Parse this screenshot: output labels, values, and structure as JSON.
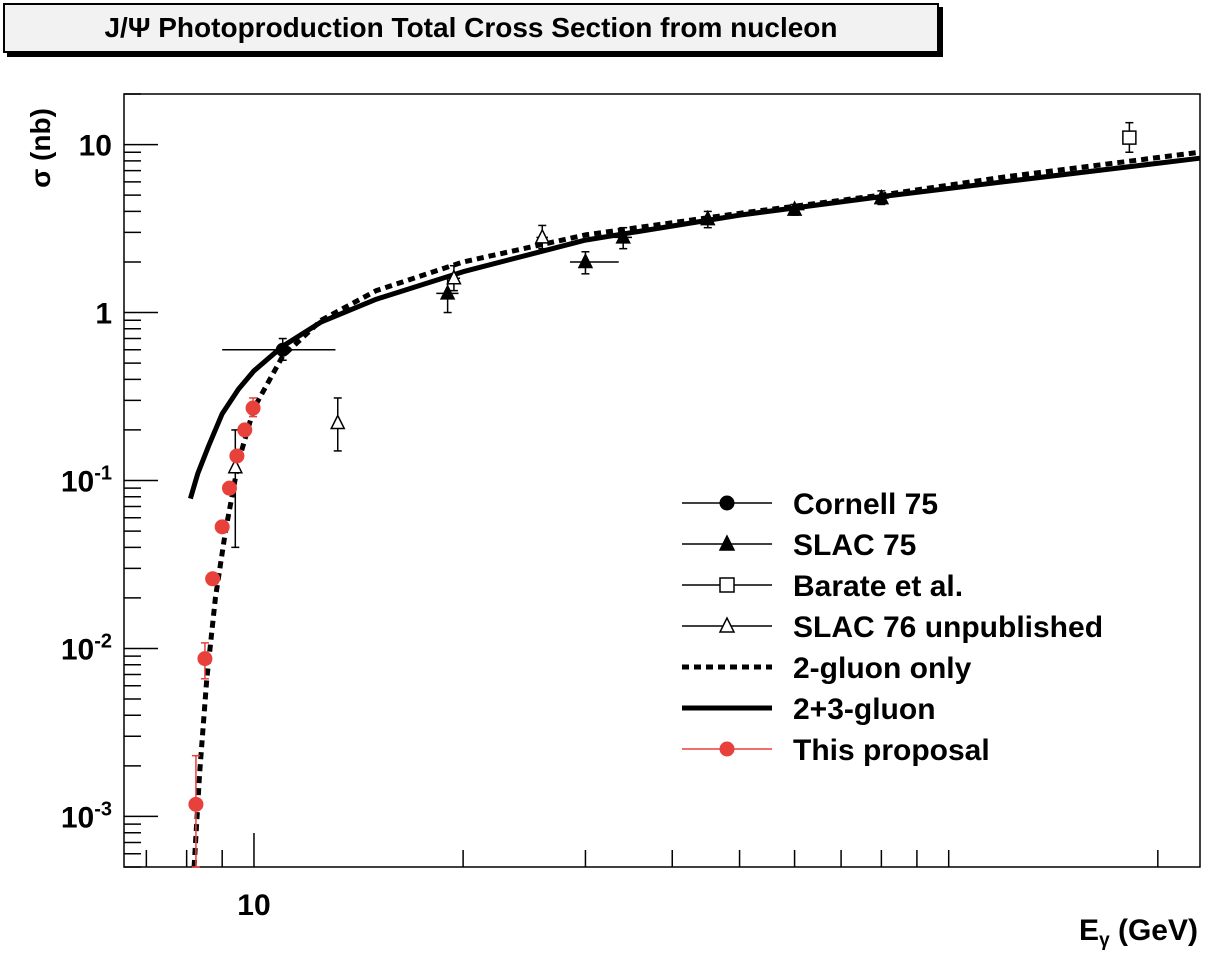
{
  "chart_data": {
    "type": "scatter",
    "title": "J/Ψ Photoproduction Total Cross Section from nucleon",
    "xlabel": "E",
    "xlabel_sub": "γ",
    "xlabel_unit": " (GeV)",
    "ylabel": "σ (nb)",
    "x_scale": "log",
    "y_scale": "log",
    "xlim": [
      6.5,
      230
    ],
    "ylim": [
      0.0005,
      20
    ],
    "x_major_ticks": [
      {
        "value": 10,
        "label": "10"
      }
    ],
    "x_minor_ticks": [
      7,
      8,
      9,
      20,
      30,
      40,
      50,
      60,
      70,
      80,
      90,
      100,
      200
    ],
    "y_major_ticks": [
      {
        "value": 10,
        "label": "10"
      },
      {
        "value": 1,
        "label": "1"
      },
      {
        "value": 0.1,
        "base": "10",
        "exp": "-1"
      },
      {
        "value": 0.01,
        "base": "10",
        "exp": "-2"
      },
      {
        "value": 0.001,
        "base": "10",
        "exp": "-3"
      }
    ],
    "legend_position": "bottom-right",
    "series": [
      {
        "name": "Cornell 75",
        "kind": "points",
        "marker": "circle-filled",
        "color": "#000000",
        "points": [
          {
            "x": 11.0,
            "y": 0.6,
            "xerr": [
              9.0,
              13.1
            ],
            "yerr": [
              0.52,
              0.7
            ]
          }
        ]
      },
      {
        "name": "SLAC 75",
        "kind": "points",
        "marker": "triangle-filled",
        "color": "#000000",
        "points": [
          {
            "x": 19.0,
            "y": 1.3,
            "xerr": [
              18.3,
              19.7
            ],
            "yerr": [
              1.0,
              1.6
            ]
          },
          {
            "x": 30.0,
            "y": 2.0,
            "xerr": [
              28.5,
              33.5
            ],
            "yerr": [
              1.7,
              2.3
            ]
          },
          {
            "x": 34.0,
            "y": 2.8,
            "xerr": [
              33.0,
              35.0
            ],
            "yerr": [
              2.4,
              3.2
            ]
          },
          {
            "x": 45.0,
            "y": 3.6,
            "xerr": [
              44.0,
              46.0
            ],
            "yerr": [
              3.2,
              4.0
            ]
          },
          {
            "x": 60.0,
            "y": 4.1,
            "xerr": [
              58.0,
              62.0
            ],
            "yerr": [
              3.8,
              4.4
            ]
          },
          {
            "x": 80.0,
            "y": 4.8,
            "xerr": [
              78.0,
              82.0
            ],
            "yerr": [
              4.4,
              5.3
            ]
          }
        ]
      },
      {
        "name": "Barate et al.",
        "kind": "points",
        "marker": "square-open",
        "color": "#000000",
        "points": [
          {
            "x": 182.0,
            "y": 11.0,
            "xerr": [
              178.0,
              186.0
            ],
            "yerr": [
              9.0,
              13.5
            ]
          }
        ]
      },
      {
        "name": "SLAC 76 unpublished",
        "kind": "points",
        "marker": "triangle-open",
        "color": "#000000",
        "points": [
          {
            "x": 9.4,
            "y": 0.12,
            "xerr": [
              9.3,
              9.5
            ],
            "yerr": [
              0.04,
              0.2
            ]
          },
          {
            "x": 13.2,
            "y": 0.22,
            "xerr": [
              13.1,
              13.3
            ],
            "yerr": [
              0.15,
              0.31
            ]
          },
          {
            "x": 19.4,
            "y": 1.6,
            "xerr": [
              19.0,
              19.8
            ],
            "yerr": [
              1.35,
              1.9
            ]
          },
          {
            "x": 26.0,
            "y": 2.8,
            "xerr": [
              25.5,
              26.5
            ],
            "yerr": [
              2.4,
              3.3
            ]
          }
        ]
      },
      {
        "name": "2-gluon only",
        "kind": "line",
        "style": "dotted",
        "color": "#000000",
        "points": [
          {
            "x": 8.2,
            "y": 0.0005
          },
          {
            "x": 8.35,
            "y": 0.0018
          },
          {
            "x": 8.55,
            "y": 0.0065
          },
          {
            "x": 8.8,
            "y": 0.02
          },
          {
            "x": 9.1,
            "y": 0.05
          },
          {
            "x": 9.5,
            "y": 0.13
          },
          {
            "x": 10.0,
            "y": 0.27
          },
          {
            "x": 11.0,
            "y": 0.55
          },
          {
            "x": 12.5,
            "y": 0.9
          },
          {
            "x": 15.0,
            "y": 1.35
          },
          {
            "x": 20.0,
            "y": 2.0
          },
          {
            "x": 30.0,
            "y": 2.9
          },
          {
            "x": 50.0,
            "y": 3.9
          },
          {
            "x": 80.0,
            "y": 5.0
          },
          {
            "x": 120.0,
            "y": 6.4
          },
          {
            "x": 230.0,
            "y": 9.0
          }
        ]
      },
      {
        "name": "2+3-gluon",
        "kind": "line",
        "style": "solid",
        "color": "#000000",
        "points": [
          {
            "x": 8.1,
            "y": 0.078
          },
          {
            "x": 8.3,
            "y": 0.11
          },
          {
            "x": 8.6,
            "y": 0.16
          },
          {
            "x": 9.0,
            "y": 0.25
          },
          {
            "x": 9.5,
            "y": 0.35
          },
          {
            "x": 10.0,
            "y": 0.45
          },
          {
            "x": 11.0,
            "y": 0.63
          },
          {
            "x": 12.5,
            "y": 0.88
          },
          {
            "x": 15.0,
            "y": 1.2
          },
          {
            "x": 20.0,
            "y": 1.75
          },
          {
            "x": 30.0,
            "y": 2.7
          },
          {
            "x": 50.0,
            "y": 3.8
          },
          {
            "x": 80.0,
            "y": 4.9
          },
          {
            "x": 120.0,
            "y": 6.0
          },
          {
            "x": 230.0,
            "y": 8.3
          }
        ]
      },
      {
        "name": "This proposal",
        "kind": "points",
        "marker": "circle-filled",
        "color": "#e8403a",
        "points": [
          {
            "x": 8.25,
            "y": 0.00118,
            "yerr": [
              0.0005,
              0.0023
            ]
          },
          {
            "x": 8.5,
            "y": 0.0087,
            "yerr": [
              0.0066,
              0.0108
            ]
          },
          {
            "x": 8.72,
            "y": 0.026,
            "yerr": [
              0.024,
              0.028
            ]
          },
          {
            "x": 9.0,
            "y": 0.053,
            "yerr": [
              0.05,
              0.056
            ]
          },
          {
            "x": 9.22,
            "y": 0.09,
            "yerr": [
              0.086,
              0.094
            ]
          },
          {
            "x": 9.45,
            "y": 0.14,
            "yerr": [
              0.13,
              0.15
            ]
          },
          {
            "x": 9.7,
            "y": 0.2,
            "yerr": [
              0.19,
              0.21
            ]
          },
          {
            "x": 9.97,
            "y": 0.27,
            "yerr": [
              0.24,
              0.31
            ]
          }
        ]
      }
    ]
  }
}
